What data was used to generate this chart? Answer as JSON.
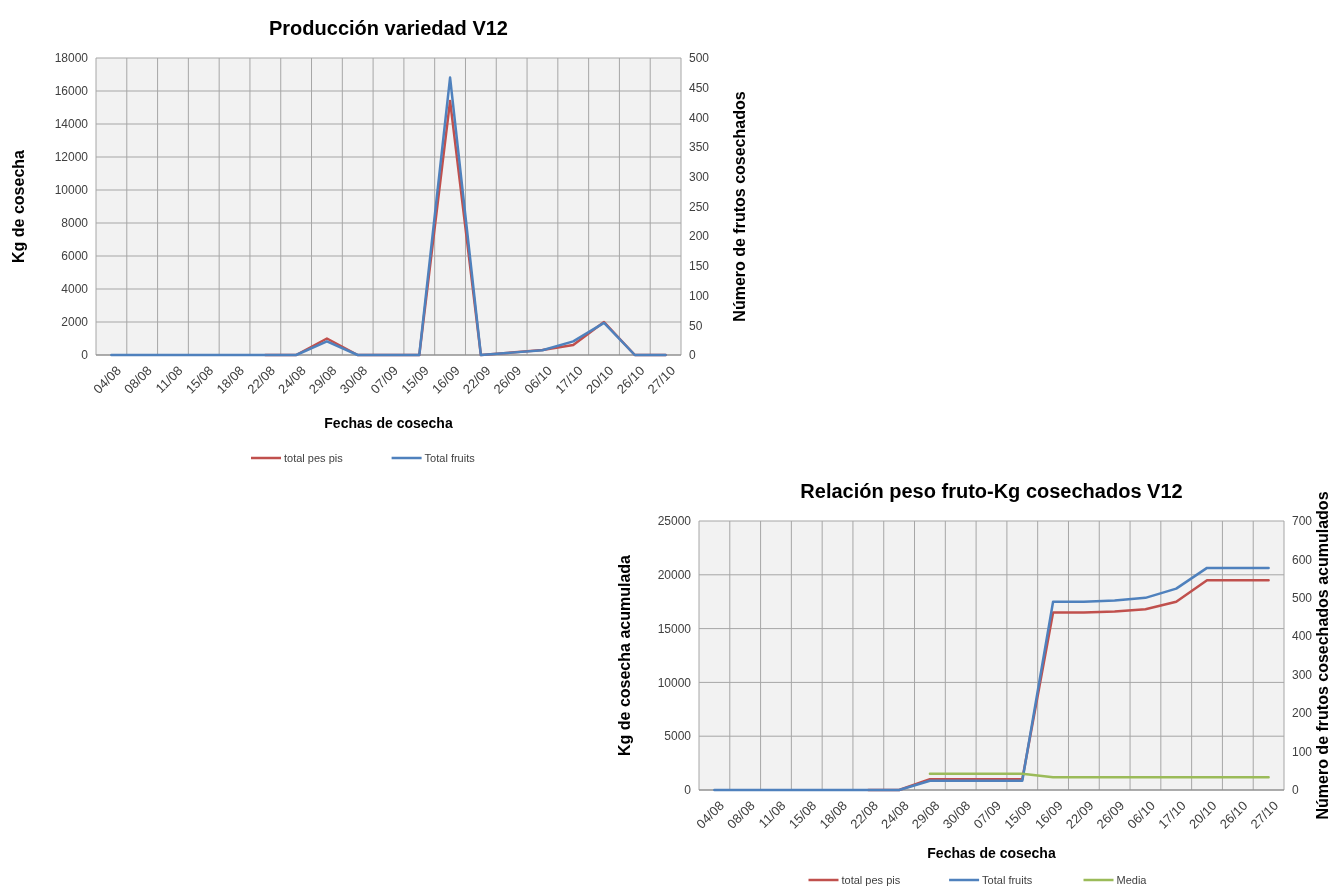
{
  "chart_data": [
    {
      "type": "line",
      "title": "Producción variedad  V12",
      "xlabel": "Fechas de cosecha",
      "ylabel": "Kg de cosecha",
      "y2label": "Número de frutos cosechados",
      "categories": [
        "04/08",
        "08/08",
        "11/08",
        "15/08",
        "18/08",
        "22/08",
        "24/08",
        "29/08",
        "30/08",
        "07/09",
        "15/09",
        "16/09",
        "22/09",
        "26/09",
        "06/10",
        "17/10",
        "20/10",
        "26/10",
        "27/10"
      ],
      "ylim": [
        0,
        18000
      ],
      "yticks": [
        0,
        2000,
        4000,
        6000,
        8000,
        10000,
        12000,
        14000,
        16000,
        18000
      ],
      "y2lim": [
        0,
        500
      ],
      "y2ticks": [
        0,
        50,
        100,
        150,
        200,
        250,
        300,
        350,
        400,
        450,
        500
      ],
      "grid": true,
      "legend": "bottom",
      "series": [
        {
          "name": "total pes pis",
          "color": "#c0504d",
          "values": [
            null,
            null,
            null,
            null,
            null,
            0,
            0,
            1000,
            0,
            0,
            0,
            15400,
            0,
            150,
            300,
            600,
            2000,
            0,
            0
          ]
        },
        {
          "name": "Total fruits",
          "color": "#4f81bd",
          "axis": "y2",
          "values": [
            0,
            0,
            0,
            0,
            0,
            0,
            0,
            23,
            0,
            0,
            0,
            467,
            0,
            4,
            8,
            23,
            54,
            0,
            0
          ]
        }
      ]
    },
    {
      "type": "line",
      "title": "Relación peso fruto-Kg cosechados V12",
      "xlabel": "Fechas de cosecha",
      "ylabel": "Kg de cosecha acumulada",
      "y2label": "Número de frutos cosechados acumulados",
      "categories": [
        "04/08",
        "08/08",
        "11/08",
        "15/08",
        "18/08",
        "22/08",
        "24/08",
        "29/08",
        "30/08",
        "07/09",
        "15/09",
        "16/09",
        "22/09",
        "26/09",
        "06/10",
        "17/10",
        "20/10",
        "26/10",
        "27/10"
      ],
      "ylim": [
        0,
        25000
      ],
      "yticks": [
        0,
        5000,
        10000,
        15000,
        20000,
        25000
      ],
      "y2lim": [
        0,
        700
      ],
      "y2ticks": [
        0,
        100,
        200,
        300,
        400,
        500,
        600,
        700
      ],
      "grid": true,
      "legend": "bottom",
      "series": [
        {
          "name": "total pes pis",
          "color": "#c0504d",
          "values": [
            null,
            null,
            null,
            null,
            null,
            0,
            0,
            1000,
            1000,
            1000,
            1000,
            16500,
            16500,
            16600,
            16800,
            17500,
            19500,
            19500,
            19500
          ]
        },
        {
          "name": "Total fruits",
          "color": "#4f81bd",
          "axis": "y2",
          "values": [
            0,
            0,
            0,
            0,
            0,
            0,
            0,
            24,
            24,
            24,
            24,
            490,
            490,
            493,
            500,
            524,
            578,
            578,
            578
          ]
        },
        {
          "name": "Media",
          "color": "#9bbb59",
          "axis": "y2",
          "values": [
            null,
            null,
            null,
            null,
            null,
            null,
            null,
            42,
            42,
            42,
            42,
            33,
            33,
            33,
            33,
            33,
            33,
            33,
            33
          ]
        }
      ]
    }
  ]
}
